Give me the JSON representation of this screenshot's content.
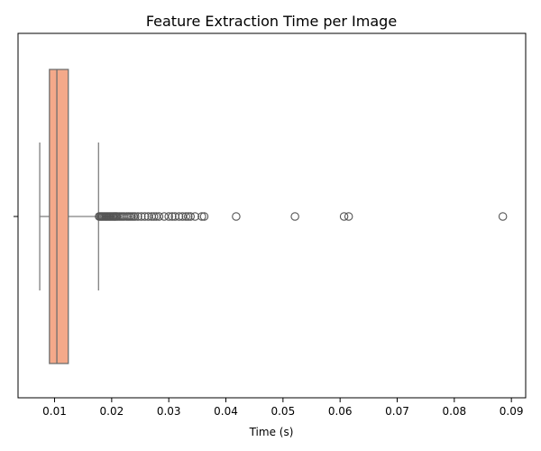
{
  "chart_data": {
    "type": "box",
    "orientation": "horizontal",
    "title": "Feature Extraction Time per Image",
    "xlabel": "Time (s)",
    "ylabel": "",
    "xlim": [
      0.0036,
      0.0925
    ],
    "xticks": [
      0.01,
      0.02,
      0.03,
      0.04,
      0.05,
      0.06,
      0.07,
      0.08,
      0.09
    ],
    "xtick_labels": [
      "0.01",
      "0.02",
      "0.03",
      "0.04",
      "0.05",
      "0.06",
      "0.07",
      "0.08",
      "0.09"
    ],
    "grid": false,
    "legend": "none",
    "colors": {
      "box_fill": "#F4A98A",
      "box_edge": "#6F6F6F",
      "whisker": "#808080",
      "outlier_edge": "#555555"
    },
    "box": {
      "whisker_low": 0.0074,
      "q1": 0.0091,
      "median": 0.0104,
      "q3": 0.0124,
      "whisker_high": 0.0177
    },
    "outliers": [
      0.0178,
      0.018,
      0.0182,
      0.0184,
      0.0186,
      0.0188,
      0.019,
      0.0192,
      0.0194,
      0.0196,
      0.0198,
      0.02,
      0.0202,
      0.0204,
      0.0206,
      0.0208,
      0.021,
      0.0213,
      0.0216,
      0.0219,
      0.0222,
      0.0226,
      0.0229,
      0.0232,
      0.0235,
      0.0238,
      0.0241,
      0.0246,
      0.0252,
      0.0258,
      0.0264,
      0.027,
      0.0274,
      0.0278,
      0.0283,
      0.0292,
      0.03,
      0.0306,
      0.0311,
      0.0318,
      0.0324,
      0.033,
      0.0334,
      0.0338,
      0.0346,
      0.0358,
      0.0362,
      0.0418,
      0.0521,
      0.0607,
      0.0615,
      0.0885
    ]
  }
}
